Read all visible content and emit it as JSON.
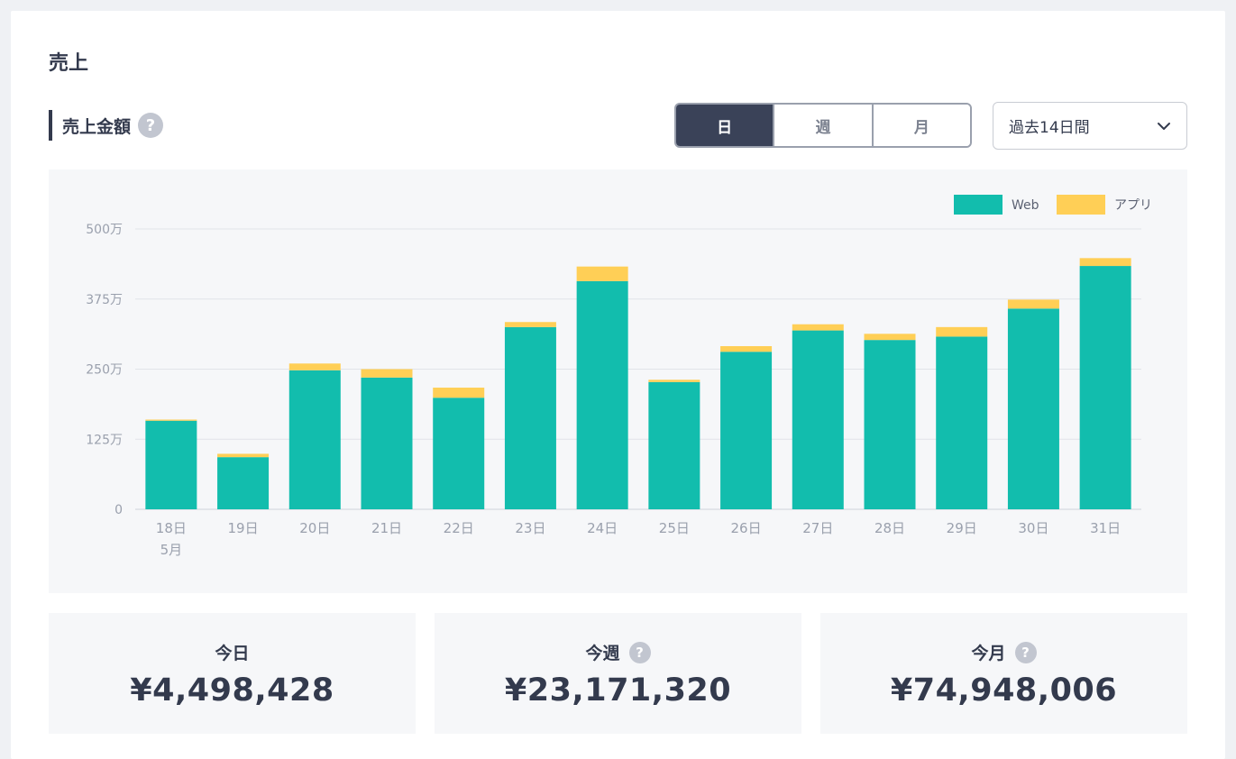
{
  "page": {
    "title": "売上"
  },
  "section": {
    "title": "売上金額",
    "help_icon": "question-circle-icon"
  },
  "period_toggle": {
    "options": [
      {
        "label": "日",
        "active": true
      },
      {
        "label": "週",
        "active": false
      },
      {
        "label": "月",
        "active": false
      }
    ]
  },
  "range_select": {
    "value": "過去14日間",
    "icon": "chevron-down-icon"
  },
  "colors": {
    "web": "#12bdad",
    "app": "#ffcf56",
    "active_toggle": "#3a4258"
  },
  "chart_data": {
    "type": "bar",
    "stacked": true,
    "categories": [
      "18日",
      "19日",
      "20日",
      "21日",
      "22日",
      "23日",
      "24日",
      "25日",
      "26日",
      "27日",
      "28日",
      "29日",
      "30日",
      "31日"
    ],
    "category_sublabel": {
      "index": 0,
      "label": "5月"
    },
    "series": [
      {
        "name": "Web",
        "values": [
          158,
          93,
          248,
          235,
          199,
          325,
          407,
          227,
          281,
          319,
          302,
          308,
          358,
          434
        ]
      },
      {
        "name": "アプリ",
        "values": [
          2,
          6,
          12,
          15,
          18,
          9,
          26,
          4,
          10,
          11,
          11,
          17,
          16,
          14
        ]
      }
    ],
    "y_ticks": [
      "0",
      "125万",
      "250万",
      "375万",
      "500万"
    ],
    "ylim": [
      0,
      500
    ],
    "grid": true,
    "legend_position": "top-right"
  },
  "stats": [
    {
      "label": "今日",
      "value": "¥4,498,428",
      "help": false
    },
    {
      "label": "今週",
      "value": "¥23,171,320",
      "help": true
    },
    {
      "label": "今月",
      "value": "¥74,948,006",
      "help": true
    }
  ]
}
